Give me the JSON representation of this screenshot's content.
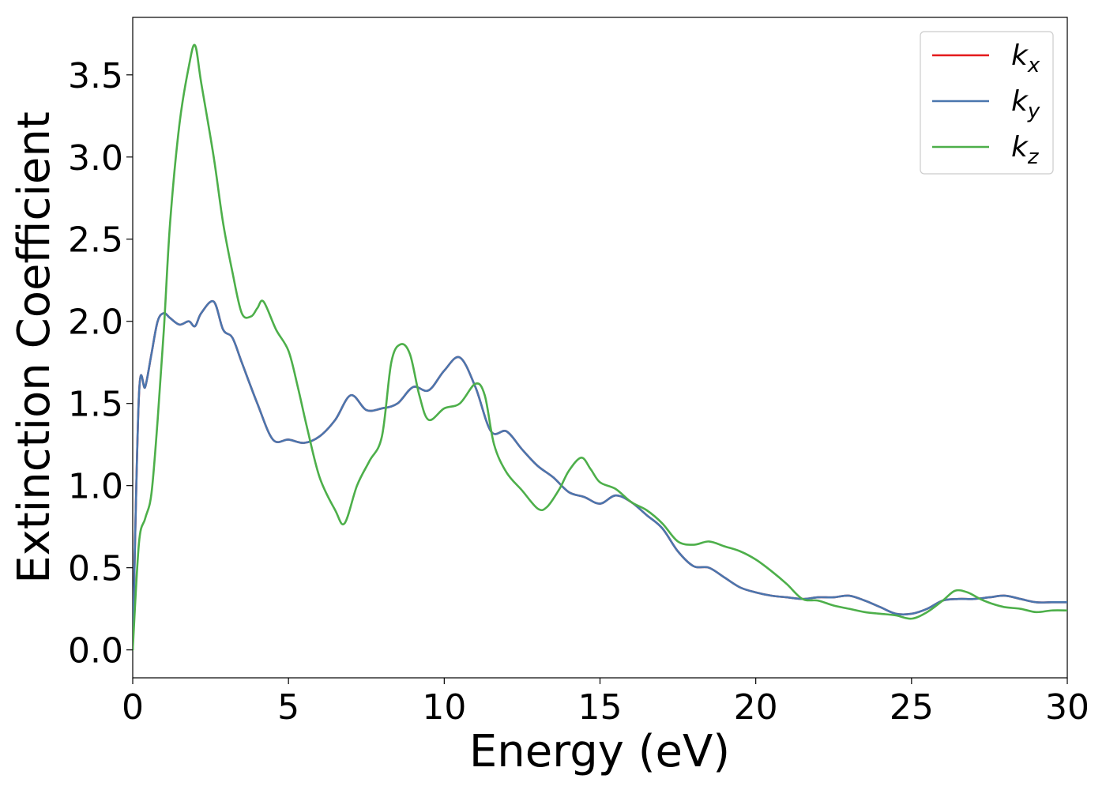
{
  "chart_data": {
    "type": "line",
    "title": "",
    "xlabel": "Energy (eV)",
    "ylabel": "Extinction Coefficient",
    "xlim": [
      0,
      30
    ],
    "ylim": [
      -0.17,
      3.85
    ],
    "xticks": [
      0,
      5,
      10,
      15,
      20,
      25,
      30
    ],
    "xtick_labels": [
      "0",
      "5",
      "10",
      "15",
      "20",
      "25",
      "30"
    ],
    "yticks": [
      0.0,
      0.5,
      1.0,
      1.5,
      2.0,
      2.5,
      3.0,
      3.5
    ],
    "ytick_labels": [
      "0.0",
      "0.5",
      "1.0",
      "1.5",
      "2.0",
      "2.5",
      "3.0",
      "3.5"
    ],
    "grid": false,
    "legend_position": "top-right",
    "series": [
      {
        "name": "k_x",
        "label_base": "k",
        "label_sub": "x",
        "color": "#e41a1c",
        "x": [
          0.0,
          0.2,
          0.4,
          0.6,
          0.8,
          1.0,
          1.2,
          1.5,
          1.8,
          2.0,
          2.2,
          2.6,
          2.9,
          3.2,
          3.5,
          4.0,
          4.5,
          5.0,
          5.5,
          6.0,
          6.5,
          7.0,
          7.5,
          8.0,
          8.5,
          9.0,
          9.5,
          10.0,
          10.5,
          11.0,
          11.5,
          12.0,
          12.5,
          13.0,
          13.5,
          14.0,
          14.5,
          15.0,
          15.5,
          16.0,
          16.5,
          17.0,
          17.5,
          18.0,
          18.5,
          19.0,
          19.5,
          20.0,
          20.5,
          21.0,
          21.5,
          22.0,
          22.5,
          23.0,
          23.5,
          24.0,
          24.5,
          25.0,
          25.5,
          26.0,
          26.5,
          27.0,
          27.5,
          28.0,
          28.5,
          29.0,
          29.5,
          30.0
        ],
        "y": [
          0.0,
          1.55,
          1.6,
          1.8,
          2.0,
          2.05,
          2.02,
          1.98,
          2.0,
          1.97,
          2.05,
          2.12,
          1.95,
          1.9,
          1.75,
          1.5,
          1.28,
          1.28,
          1.26,
          1.3,
          1.4,
          1.55,
          1.46,
          1.47,
          1.5,
          1.6,
          1.58,
          1.7,
          1.78,
          1.6,
          1.33,
          1.33,
          1.22,
          1.12,
          1.05,
          0.96,
          0.93,
          0.89,
          0.94,
          0.9,
          0.82,
          0.74,
          0.6,
          0.51,
          0.5,
          0.44,
          0.38,
          0.35,
          0.33,
          0.32,
          0.31,
          0.32,
          0.32,
          0.33,
          0.3,
          0.26,
          0.22,
          0.22,
          0.25,
          0.3,
          0.31,
          0.31,
          0.32,
          0.33,
          0.31,
          0.29,
          0.29,
          0.29
        ]
      },
      {
        "name": "k_y",
        "label_base": "k",
        "label_sub": "y",
        "color": "#4a76ae",
        "x": [
          0.0,
          0.2,
          0.4,
          0.6,
          0.8,
          1.0,
          1.2,
          1.5,
          1.8,
          2.0,
          2.2,
          2.6,
          2.9,
          3.2,
          3.5,
          4.0,
          4.5,
          5.0,
          5.5,
          6.0,
          6.5,
          7.0,
          7.5,
          8.0,
          8.5,
          9.0,
          9.5,
          10.0,
          10.5,
          11.0,
          11.5,
          12.0,
          12.5,
          13.0,
          13.5,
          14.0,
          14.5,
          15.0,
          15.5,
          16.0,
          16.5,
          17.0,
          17.5,
          18.0,
          18.5,
          19.0,
          19.5,
          20.0,
          20.5,
          21.0,
          21.5,
          22.0,
          22.5,
          23.0,
          23.5,
          24.0,
          24.5,
          25.0,
          25.5,
          26.0,
          26.5,
          27.0,
          27.5,
          28.0,
          28.5,
          29.0,
          29.5,
          30.0
        ],
        "y": [
          0.0,
          1.55,
          1.6,
          1.8,
          2.0,
          2.05,
          2.02,
          1.98,
          2.0,
          1.97,
          2.05,
          2.12,
          1.95,
          1.9,
          1.75,
          1.5,
          1.28,
          1.28,
          1.26,
          1.3,
          1.4,
          1.55,
          1.46,
          1.47,
          1.5,
          1.6,
          1.58,
          1.7,
          1.78,
          1.6,
          1.33,
          1.33,
          1.22,
          1.12,
          1.05,
          0.96,
          0.93,
          0.89,
          0.94,
          0.9,
          0.82,
          0.74,
          0.6,
          0.51,
          0.5,
          0.44,
          0.38,
          0.35,
          0.33,
          0.32,
          0.31,
          0.32,
          0.32,
          0.33,
          0.3,
          0.26,
          0.22,
          0.22,
          0.25,
          0.3,
          0.31,
          0.31,
          0.32,
          0.33,
          0.31,
          0.29,
          0.29,
          0.29
        ]
      },
      {
        "name": "k_z",
        "label_base": "k",
        "label_sub": "z",
        "color": "#4daf4a",
        "x": [
          0.0,
          0.2,
          0.4,
          0.6,
          0.8,
          1.0,
          1.2,
          1.5,
          1.8,
          2.0,
          2.2,
          2.6,
          2.9,
          3.2,
          3.5,
          3.8,
          4.0,
          4.2,
          4.6,
          5.0,
          5.3,
          5.6,
          6.0,
          6.5,
          6.8,
          7.2,
          7.6,
          8.0,
          8.3,
          8.6,
          8.9,
          9.2,
          9.5,
          10.0,
          10.5,
          11.0,
          11.3,
          11.6,
          12.0,
          12.5,
          13.0,
          13.3,
          13.7,
          14.0,
          14.4,
          14.7,
          15.0,
          15.5,
          16.0,
          16.5,
          17.0,
          17.5,
          18.0,
          18.5,
          19.0,
          19.5,
          20.0,
          20.5,
          21.0,
          21.5,
          22.0,
          22.5,
          23.0,
          23.5,
          24.0,
          24.5,
          25.0,
          25.5,
          26.0,
          26.4,
          26.8,
          27.2,
          27.6,
          28.0,
          28.5,
          29.0,
          29.5,
          30.0
        ],
        "y": [
          0.0,
          0.65,
          0.8,
          0.95,
          1.4,
          1.95,
          2.6,
          3.2,
          3.55,
          3.68,
          3.45,
          3.0,
          2.6,
          2.3,
          2.05,
          2.03,
          2.08,
          2.12,
          1.95,
          1.82,
          1.6,
          1.35,
          1.05,
          0.85,
          0.77,
          1.0,
          1.15,
          1.3,
          1.75,
          1.86,
          1.8,
          1.55,
          1.4,
          1.47,
          1.5,
          1.62,
          1.55,
          1.25,
          1.08,
          0.97,
          0.86,
          0.87,
          0.98,
          1.09,
          1.17,
          1.1,
          1.02,
          0.98,
          0.9,
          0.85,
          0.77,
          0.66,
          0.64,
          0.66,
          0.63,
          0.6,
          0.55,
          0.48,
          0.4,
          0.31,
          0.3,
          0.27,
          0.25,
          0.23,
          0.22,
          0.21,
          0.19,
          0.23,
          0.3,
          0.36,
          0.35,
          0.31,
          0.28,
          0.26,
          0.25,
          0.23,
          0.24,
          0.24
        ]
      }
    ]
  }
}
